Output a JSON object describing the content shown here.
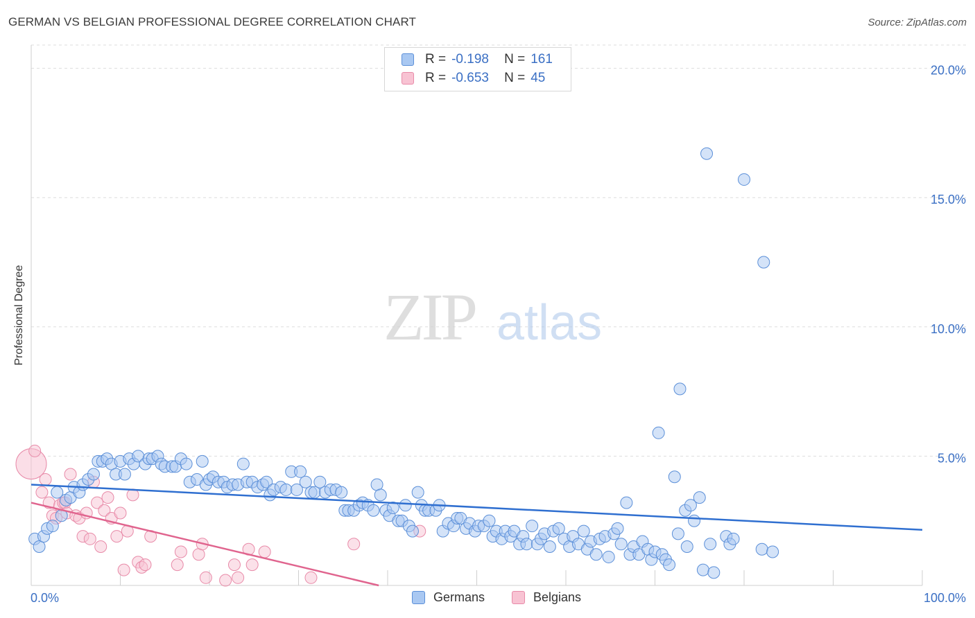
{
  "title": "GERMAN VS BELGIAN PROFESSIONAL DEGREE CORRELATION CHART",
  "source": "Source: ZipAtlas.com",
  "colors": {
    "germans_fill": "#a9c8f2",
    "germans_stroke": "#5b8fd8",
    "germans_line": "#2f6fd0",
    "belgians_fill": "#f8c3d3",
    "belgians_stroke": "#e88aa8",
    "belgians_line": "#e0648e",
    "tick_label": "#3a6fc4",
    "grid": "#dddddd"
  },
  "legend_top": {
    "rows": [
      {
        "r_label": "R =",
        "r_value": "-0.198",
        "n_label": "N =",
        "n_value": "161"
      },
      {
        "r_label": "R =",
        "r_value": "-0.653",
        "n_label": "N =",
        "n_value": "45"
      }
    ]
  },
  "legend_bottom": {
    "germans": "Germans",
    "belgians": "Belgians"
  },
  "watermark": {
    "zip": "ZIP",
    "atlas": "atlas"
  },
  "chart_data": {
    "type": "scatter",
    "xlabel": "",
    "ylabel": "Professional Degree",
    "xlim": [
      0,
      100
    ],
    "ylim": [
      0,
      20.9
    ],
    "x_tick_labels": [
      {
        "value": 0,
        "label": "0.0%"
      },
      {
        "value": 100,
        "label": "100.0%"
      }
    ],
    "y_tick_labels": [
      {
        "value": 5,
        "label": "5.0%"
      },
      {
        "value": 10,
        "label": "10.0%"
      },
      {
        "value": 15,
        "label": "15.0%"
      },
      {
        "value": 20,
        "label": "20.0%"
      }
    ],
    "grid": true,
    "series": [
      {
        "name": "Germans",
        "r": -0.198,
        "n": 161,
        "trend": {
          "x0": 0,
          "y0": 3.9,
          "x1": 100,
          "y1": 2.15
        },
        "points": [
          [
            0.4,
            1.8
          ],
          [
            0.9,
            1.5
          ],
          [
            1.4,
            1.9
          ],
          [
            1.8,
            2.2
          ],
          [
            2.4,
            2.3
          ],
          [
            2.9,
            3.6
          ],
          [
            3.4,
            2.7
          ],
          [
            3.9,
            3.3
          ],
          [
            4.4,
            3.4
          ],
          [
            4.8,
            3.8
          ],
          [
            5.4,
            3.6
          ],
          [
            5.8,
            3.9
          ],
          [
            6.4,
            4.1
          ],
          [
            7.0,
            4.3
          ],
          [
            7.5,
            4.8
          ],
          [
            8.0,
            4.8
          ],
          [
            8.5,
            4.9
          ],
          [
            9.0,
            4.7
          ],
          [
            9.5,
            4.3
          ],
          [
            10.0,
            4.8
          ],
          [
            10.5,
            4.3
          ],
          [
            11.0,
            4.9
          ],
          [
            11.5,
            4.7
          ],
          [
            12.0,
            5.0
          ],
          [
            12.8,
            4.7
          ],
          [
            13.2,
            4.9
          ],
          [
            13.6,
            4.9
          ],
          [
            14.2,
            5.0
          ],
          [
            14.6,
            4.7
          ],
          [
            15.0,
            4.6
          ],
          [
            15.8,
            4.6
          ],
          [
            16.2,
            4.6
          ],
          [
            16.8,
            4.9
          ],
          [
            17.4,
            4.7
          ],
          [
            17.8,
            4.0
          ],
          [
            18.6,
            4.1
          ],
          [
            19.2,
            4.8
          ],
          [
            19.6,
            3.9
          ],
          [
            20.0,
            4.1
          ],
          [
            20.4,
            4.2
          ],
          [
            21.0,
            4.0
          ],
          [
            21.6,
            4.0
          ],
          [
            22.0,
            3.8
          ],
          [
            22.6,
            3.9
          ],
          [
            23.2,
            3.9
          ],
          [
            23.8,
            4.7
          ],
          [
            24.2,
            4.0
          ],
          [
            24.8,
            4.0
          ],
          [
            25.4,
            3.8
          ],
          [
            26.0,
            3.9
          ],
          [
            26.4,
            4.0
          ],
          [
            26.8,
            3.5
          ],
          [
            27.2,
            3.7
          ],
          [
            28.0,
            3.8
          ],
          [
            28.6,
            3.7
          ],
          [
            29.2,
            4.4
          ],
          [
            29.8,
            3.7
          ],
          [
            30.2,
            4.4
          ],
          [
            30.8,
            4.0
          ],
          [
            31.4,
            3.6
          ],
          [
            31.8,
            3.6
          ],
          [
            32.4,
            4.0
          ],
          [
            33.0,
            3.6
          ],
          [
            33.6,
            3.7
          ],
          [
            34.2,
            3.7
          ],
          [
            34.8,
            3.6
          ],
          [
            35.2,
            2.9
          ],
          [
            35.6,
            2.9
          ],
          [
            36.2,
            2.9
          ],
          [
            36.8,
            3.1
          ],
          [
            37.2,
            3.2
          ],
          [
            37.8,
            3.1
          ],
          [
            38.4,
            2.9
          ],
          [
            38.8,
            3.9
          ],
          [
            39.2,
            3.5
          ],
          [
            39.8,
            2.9
          ],
          [
            40.2,
            2.7
          ],
          [
            40.6,
            3.0
          ],
          [
            41.2,
            2.5
          ],
          [
            41.6,
            2.5
          ],
          [
            42.0,
            3.1
          ],
          [
            42.4,
            2.3
          ],
          [
            42.8,
            2.1
          ],
          [
            43.4,
            3.6
          ],
          [
            43.8,
            3.1
          ],
          [
            44.2,
            2.9
          ],
          [
            44.6,
            2.9
          ],
          [
            45.4,
            2.9
          ],
          [
            45.8,
            3.1
          ],
          [
            46.2,
            2.1
          ],
          [
            46.8,
            2.4
          ],
          [
            47.4,
            2.3
          ],
          [
            47.8,
            2.6
          ],
          [
            48.2,
            2.6
          ],
          [
            48.8,
            2.2
          ],
          [
            49.2,
            2.4
          ],
          [
            49.8,
            2.1
          ],
          [
            50.2,
            2.3
          ],
          [
            50.8,
            2.3
          ],
          [
            51.4,
            2.5
          ],
          [
            51.8,
            1.9
          ],
          [
            52.2,
            2.1
          ],
          [
            52.8,
            1.8
          ],
          [
            53.2,
            2.1
          ],
          [
            53.8,
            1.9
          ],
          [
            54.2,
            2.1
          ],
          [
            54.8,
            1.6
          ],
          [
            55.2,
            1.9
          ],
          [
            55.6,
            1.6
          ],
          [
            56.2,
            2.3
          ],
          [
            56.8,
            1.6
          ],
          [
            57.2,
            1.8
          ],
          [
            57.6,
            2.0
          ],
          [
            58.2,
            1.5
          ],
          [
            58.6,
            2.1
          ],
          [
            59.2,
            2.2
          ],
          [
            59.8,
            1.8
          ],
          [
            60.4,
            1.5
          ],
          [
            60.8,
            1.9
          ],
          [
            61.4,
            1.6
          ],
          [
            62.0,
            2.1
          ],
          [
            62.4,
            1.4
          ],
          [
            62.8,
            1.7
          ],
          [
            63.4,
            1.2
          ],
          [
            63.8,
            1.8
          ],
          [
            64.4,
            1.9
          ],
          [
            64.8,
            1.1
          ],
          [
            65.4,
            2.0
          ],
          [
            65.8,
            2.2
          ],
          [
            66.2,
            1.6
          ],
          [
            66.8,
            3.2
          ],
          [
            67.2,
            1.2
          ],
          [
            67.6,
            1.5
          ],
          [
            68.2,
            1.2
          ],
          [
            68.6,
            1.7
          ],
          [
            69.2,
            1.4
          ],
          [
            69.6,
            1.0
          ],
          [
            70.0,
            1.3
          ],
          [
            70.4,
            5.9
          ],
          [
            70.8,
            1.2
          ],
          [
            71.2,
            1.0
          ],
          [
            71.6,
            0.8
          ],
          [
            72.2,
            4.2
          ],
          [
            72.6,
            2.0
          ],
          [
            72.8,
            7.6
          ],
          [
            73.4,
            2.9
          ],
          [
            73.6,
            1.5
          ],
          [
            74.0,
            3.1
          ],
          [
            74.4,
            2.5
          ],
          [
            75.0,
            3.4
          ],
          [
            75.4,
            0.6
          ],
          [
            75.8,
            16.7
          ],
          [
            76.2,
            1.6
          ],
          [
            76.6,
            0.5
          ],
          [
            78.0,
            1.9
          ],
          [
            78.4,
            1.6
          ],
          [
            78.8,
            1.8
          ],
          [
            80.0,
            15.7
          ],
          [
            82.0,
            1.4
          ],
          [
            82.2,
            12.5
          ],
          [
            83.2,
            1.3
          ]
        ]
      },
      {
        "name": "Belgians",
        "r": -0.653,
        "n": 45,
        "trend": {
          "x0": 0,
          "y0": 3.2,
          "x1": 39,
          "y1": 0.0
        },
        "points": [
          [
            0.4,
            5.2
          ],
          [
            1.2,
            3.6
          ],
          [
            1.6,
            4.1
          ],
          [
            2.0,
            3.2
          ],
          [
            2.4,
            2.7
          ],
          [
            2.8,
            2.6
          ],
          [
            3.2,
            3.1
          ],
          [
            3.6,
            3.2
          ],
          [
            3.8,
            3.2
          ],
          [
            4.0,
            2.8
          ],
          [
            4.4,
            4.3
          ],
          [
            5.0,
            2.7
          ],
          [
            5.4,
            2.6
          ],
          [
            5.8,
            1.9
          ],
          [
            6.2,
            2.8
          ],
          [
            6.6,
            1.8
          ],
          [
            7.0,
            4.0
          ],
          [
            7.4,
            3.2
          ],
          [
            7.8,
            1.5
          ],
          [
            8.2,
            2.9
          ],
          [
            8.6,
            3.4
          ],
          [
            9.0,
            2.6
          ],
          [
            9.6,
            1.9
          ],
          [
            10.0,
            2.8
          ],
          [
            10.4,
            0.6
          ],
          [
            10.8,
            2.1
          ],
          [
            11.4,
            3.5
          ],
          [
            12.0,
            0.9
          ],
          [
            12.4,
            0.7
          ],
          [
            12.8,
            0.8
          ],
          [
            13.4,
            1.9
          ],
          [
            16.4,
            0.8
          ],
          [
            16.8,
            1.3
          ],
          [
            18.8,
            1.2
          ],
          [
            19.2,
            1.6
          ],
          [
            19.6,
            0.3
          ],
          [
            21.8,
            0.2
          ],
          [
            22.8,
            0.8
          ],
          [
            23.2,
            0.3
          ],
          [
            24.4,
            1.4
          ],
          [
            24.8,
            0.8
          ],
          [
            26.2,
            1.3
          ],
          [
            31.4,
            0.3
          ],
          [
            36.2,
            1.6
          ],
          [
            43.6,
            2.1
          ]
        ],
        "large_point": [
          0.0,
          4.7
        ]
      }
    ]
  }
}
